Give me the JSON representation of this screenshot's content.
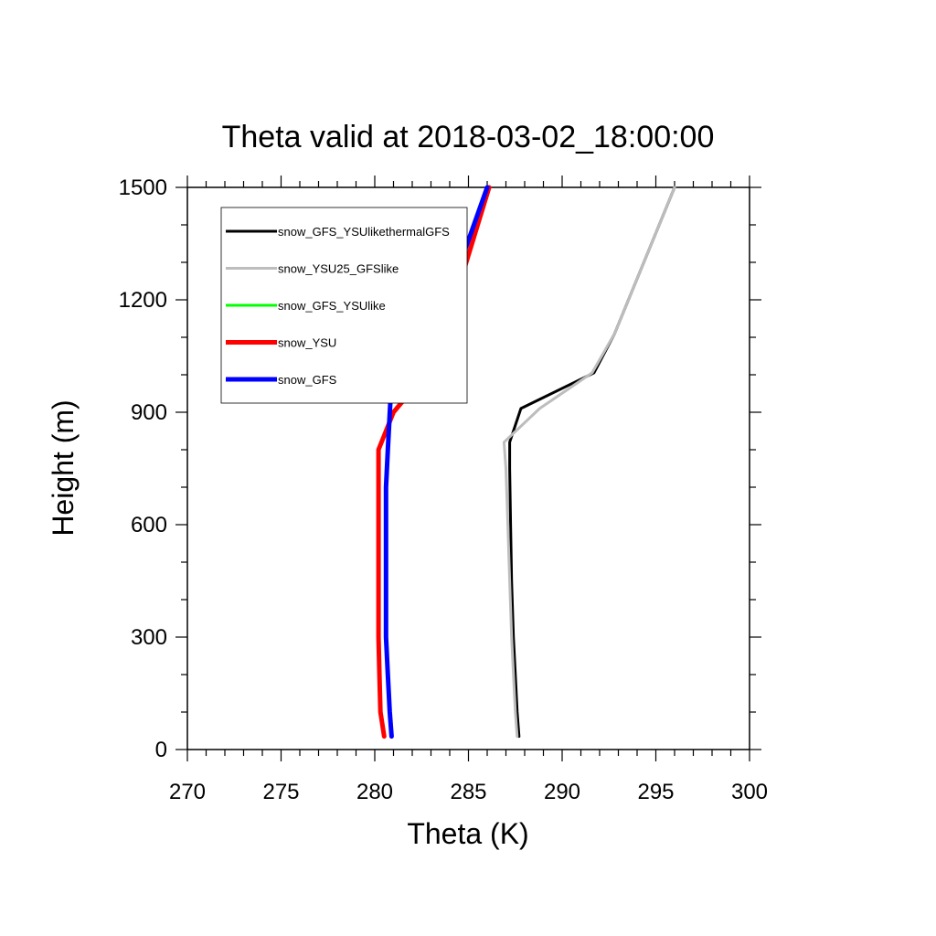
{
  "chart_data": {
    "type": "line",
    "title": "Theta valid at 2018-03-02_18:00:00",
    "xlabel": "Theta (K)",
    "ylabel": "Height (m)",
    "xlim": [
      270,
      300
    ],
    "ylim": [
      0,
      1500
    ],
    "xticks": [
      270,
      275,
      280,
      285,
      290,
      295,
      300
    ],
    "yticks": [
      0,
      300,
      600,
      900,
      1200,
      1500
    ],
    "x_tick_labels": [
      "270",
      "275",
      "280",
      "285",
      "290",
      "295",
      "300"
    ],
    "y_tick_labels": [
      "0",
      "300",
      "600",
      "900",
      "1200",
      "1500"
    ],
    "grid": false,
    "legend_position": "top-left",
    "series": [
      {
        "name": "snow_GFS_YSUlikethermalGFS",
        "color": "#000000",
        "width": 3,
        "points": [
          [
            287.7,
            35
          ],
          [
            287.6,
            100
          ],
          [
            287.5,
            200
          ],
          [
            287.4,
            300
          ],
          [
            287.3,
            450
          ],
          [
            287.25,
            600
          ],
          [
            287.2,
            750
          ],
          [
            287.2,
            820
          ],
          [
            287.8,
            910
          ],
          [
            291.7,
            1005
          ],
          [
            292.8,
            1110
          ],
          [
            296.0,
            1500
          ]
        ]
      },
      {
        "name": "snow_YSU25_GFSlike",
        "color": "#bdbdbd",
        "width": 3,
        "points": [
          [
            287.6,
            35
          ],
          [
            287.5,
            100
          ],
          [
            287.4,
            200
          ],
          [
            287.3,
            300
          ],
          [
            287.2,
            450
          ],
          [
            287.1,
            600
          ],
          [
            287.0,
            750
          ],
          [
            286.9,
            820
          ],
          [
            288.8,
            910
          ],
          [
            291.6,
            1005
          ],
          [
            292.8,
            1110
          ],
          [
            296.0,
            1500
          ]
        ]
      },
      {
        "name": "snow_GFS_YSUlike",
        "color": "#00ff00",
        "width": 3,
        "points": []
      },
      {
        "name": "snow_YSU",
        "color": "#ff0000",
        "width": 5,
        "points": [
          [
            280.5,
            35
          ],
          [
            280.3,
            100
          ],
          [
            280.25,
            200
          ],
          [
            280.2,
            300
          ],
          [
            280.2,
            500
          ],
          [
            280.2,
            700
          ],
          [
            280.2,
            800
          ],
          [
            281.0,
            900
          ],
          [
            282.5,
            990
          ],
          [
            283.6,
            1090
          ],
          [
            286.1,
            1500
          ]
        ]
      },
      {
        "name": "snow_GFS",
        "color": "#0000ff",
        "width": 5,
        "points": [
          [
            280.9,
            35
          ],
          [
            280.8,
            100
          ],
          [
            280.7,
            200
          ],
          [
            280.6,
            300
          ],
          [
            280.6,
            500
          ],
          [
            280.6,
            700
          ],
          [
            280.7,
            800
          ],
          [
            280.9,
            990
          ],
          [
            281.7,
            1085
          ],
          [
            283.8,
            1190
          ],
          [
            286.0,
            1500
          ]
        ]
      }
    ]
  }
}
